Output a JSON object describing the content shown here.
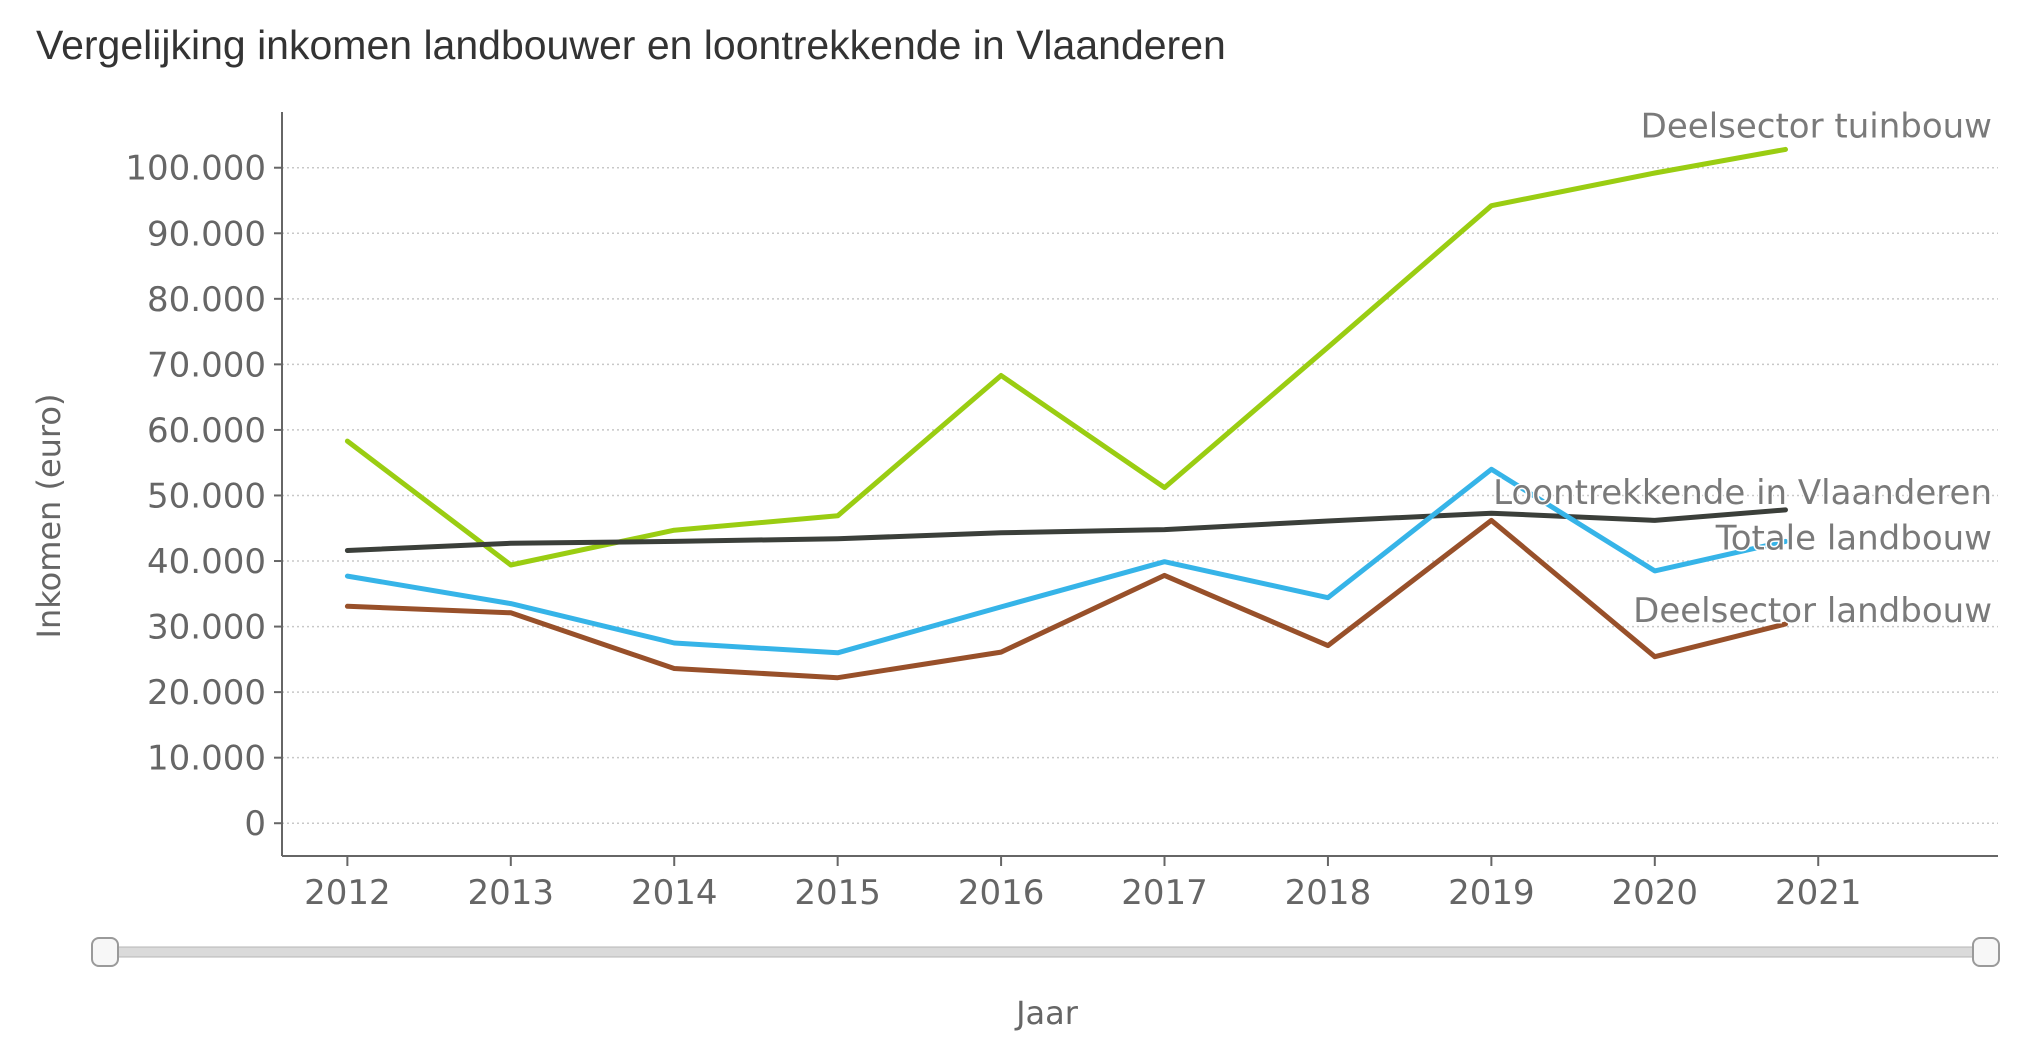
{
  "chart_data": {
    "type": "line",
    "title": "Vergelijking inkomen landbouwer en loontrekkende in Vlaanderen",
    "xlabel": "Jaar",
    "ylabel": "Inkomen (euro)",
    "x": [
      2012,
      2013,
      2014,
      2015,
      2016,
      2017,
      2018,
      2019,
      2020,
      2021
    ],
    "xlim": [
      2011.6,
      2022.1
    ],
    "ylim": [
      -5000,
      108500
    ],
    "yticks": [
      0,
      10000,
      20000,
      30000,
      40000,
      50000,
      60000,
      70000,
      80000,
      90000,
      100000
    ],
    "ytick_labels": [
      "0",
      "10.000",
      "20.000",
      "30.000",
      "40.000",
      "50.000",
      "60.000",
      "70.000",
      "80.000",
      "90.000",
      "100.000"
    ],
    "xtick_labels": [
      "2012",
      "2013",
      "2014",
      "2015",
      "2016",
      "2017",
      "2018",
      "2019",
      "2020",
      "2021"
    ],
    "grid": true,
    "series": [
      {
        "name": "Deelsector tuinbouw",
        "color": "#9acd12",
        "x": [
          2012,
          2013,
          2014,
          2015,
          2016,
          2017,
          2018,
          2019,
          2020,
          2020.8
        ],
        "values": [
          58300,
          39400,
          44700,
          46900,
          68300,
          51200,
          72600,
          94200,
          99200,
          102800
        ]
      },
      {
        "name": "Loontrekkende in Vlaanderen",
        "color": "#3b3f3a",
        "x": [
          2012,
          2013,
          2014,
          2015,
          2016,
          2017,
          2018,
          2019,
          2020,
          2020.8
        ],
        "values": [
          41600,
          42700,
          43000,
          43400,
          44300,
          44800,
          46100,
          47300,
          46200,
          47800
        ]
      },
      {
        "name": "Totale landbouw",
        "color": "#36b4e8",
        "x": [
          2012,
          2013,
          2014,
          2015,
          2016,
          2017,
          2018,
          2019,
          2020,
          2020.8
        ],
        "values": [
          37700,
          33500,
          27500,
          26000,
          33000,
          39900,
          34400,
          54000,
          38500,
          43000
        ]
      },
      {
        "name": "Deelsector landbouw",
        "color": "#98502a",
        "x": [
          2012,
          2013,
          2014,
          2015,
          2016,
          2017,
          2018,
          2019,
          2020,
          2020.8
        ],
        "values": [
          33100,
          32100,
          23600,
          22200,
          26100,
          37800,
          27100,
          46200,
          25400,
          30400
        ]
      }
    ]
  }
}
